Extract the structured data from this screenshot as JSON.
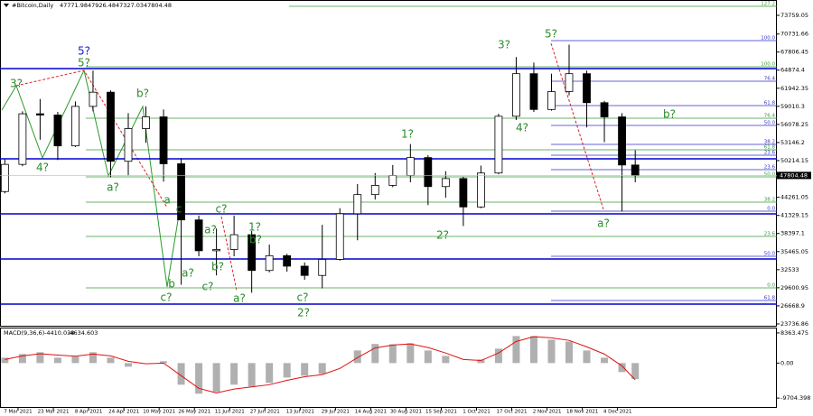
{
  "chart_data": [
    {
      "type": "candlestick",
      "header": {
        "symbol": "#Bitcoin,Daily",
        "open": 47771.98,
        "high": 47926.48,
        "low": 47327.03,
        "close": 47804.48
      },
      "x": [
        "1 Mar 2021",
        "9 Mar 2021",
        "17 Mar 2021",
        "25 Mar 2021",
        "2 Apr 2021",
        "10 Apr 2021",
        "18 Apr 2021",
        "26 Apr 2021",
        "4 May 2021",
        "12 May 2021",
        "20 May 2021",
        "28 May 2021",
        "5 Jun 2021",
        "13 Jun 2021",
        "21 Jun 2021",
        "29 Jun 2021",
        "7 Jul 2021",
        "15 Jul 2021",
        "23 Jul 2021",
        "31 Jul 2021",
        "8 Aug 2021",
        "16 Aug 2021",
        "24 Aug 2021",
        "1 Sep 2021",
        "9 Sep 2021",
        "17 Sep 2021",
        "25 Sep 2021",
        "3 Oct 2021",
        "11 Oct 2021",
        "19 Oct 2021",
        "27 Oct 2021",
        "4 Nov 2021",
        "12 Nov 2021",
        "20 Nov 2021",
        "28 Nov 2021",
        "6 Dec 2021",
        "12 Dec 2021"
      ],
      "open": [
        45200,
        49600,
        57800,
        57600,
        52600,
        59000,
        61300,
        50100,
        55400,
        57300,
        49700,
        40600,
        35600,
        35800,
        38200,
        32400,
        34800,
        33100,
        31600,
        34200,
        41600,
        44700,
        46200,
        47800,
        50700,
        46000,
        47300,
        42700,
        48200,
        57400,
        64300,
        58500,
        61400,
        64300,
        59600,
        57300,
        49500
      ],
      "high": [
        50400,
        58200,
        60200,
        58100,
        59800,
        64800,
        61600,
        57900,
        59000,
        58500,
        50600,
        41300,
        39200,
        41300,
        38800,
        36600,
        35100,
        33700,
        39800,
        42500,
        46400,
        48200,
        49500,
        52900,
        51100,
        48500,
        47600,
        49400,
        57800,
        67000,
        66100,
        64300,
        69000,
        64800,
        59900,
        57900,
        51900
      ],
      "low": [
        44900,
        49300,
        53600,
        50300,
        52400,
        58200,
        47500,
        47800,
        53100,
        46800,
        30100,
        34700,
        31600,
        34700,
        28800,
        32100,
        32200,
        30900,
        29500,
        34000,
        37300,
        43900,
        45900,
        46700,
        43000,
        44200,
        39600,
        42500,
        48000,
        56800,
        58100,
        58300,
        60800,
        55600,
        53200,
        42000,
        46700
      ],
      "close": [
        49600,
        57800,
        57600,
        52600,
        59000,
        61300,
        50100,
        55400,
        57300,
        49700,
        40600,
        35600,
        35800,
        38200,
        32400,
        34800,
        33100,
        31600,
        34200,
        41600,
        44700,
        46200,
        47800,
        50700,
        46000,
        47300,
        42700,
        48200,
        57400,
        64300,
        58500,
        61400,
        64300,
        59600,
        57300,
        49500,
        47804.48
      ],
      "ylim": [
        23440,
        76245
      ],
      "yticks": [
        73759.05,
        70731.66,
        67806.45,
        64874.4,
        61942.35,
        59010.3,
        56078.25,
        53146.2,
        50214.15,
        44261.05,
        41329.15,
        38397.1,
        35465.05,
        32533,
        29600.95,
        26668.9,
        23736.86
      ],
      "date_labels": [
        "7 Mar 2021",
        "23 Mar 2021",
        "8 Apr 2021",
        "24 Apr 2021",
        "10 May 2021",
        "26 May 2021",
        "11 Jun 2021",
        "27 Jun 2021",
        "13 Jul 2021",
        "29 Jul 2021",
        "14 Aug 2021",
        "30 Aug 2021",
        "15 Sep 2021",
        "1 Oct 2021",
        "17 Oct 2021",
        "2 Nov 2021",
        "18 Nov 2021",
        "4 Dec 2021"
      ],
      "hlines": [
        {
          "price": 65130,
          "color": "#0000cc"
        },
        {
          "price": 50504,
          "color": "#0000cc"
        },
        {
          "price": 41581,
          "color": "#0000cc"
        },
        {
          "price": 34268,
          "color": "#0000cc"
        },
        {
          "price": 26955,
          "color": "#0000cc"
        }
      ],
      "levels": [
        {
          "price": 75222,
          "label": "127.2",
          "color": "#3a9a3a"
        },
        {
          "price": 69664,
          "label": "100.0",
          "color": "#3333cc"
        },
        {
          "price": 65423,
          "label": "100.0",
          "color": "#3a9a3a"
        },
        {
          "price": 63082,
          "label": "76.4",
          "color": "#3333cc"
        },
        {
          "price": 59133,
          "label": "61.8",
          "color": "#3333cc"
        },
        {
          "price": 57085,
          "label": "76.4",
          "color": "#3a9a3a"
        },
        {
          "price": 55915,
          "label": "50.0",
          "color": "#3333cc"
        },
        {
          "price": 52844,
          "label": "38.2",
          "color": "#3333cc"
        },
        {
          "price": 51966,
          "label": "61.8",
          "color": "#3a9a3a"
        },
        {
          "price": 51088,
          "label": "23.6",
          "color": "#3333cc"
        },
        {
          "price": 48748,
          "label": "23.6",
          "color": "#3333cc"
        },
        {
          "price": 47578,
          "label": "50.0",
          "color": "#3a9a3a"
        },
        {
          "price": 43483,
          "label": "38.2",
          "color": "#3a9a3a"
        },
        {
          "price": 42020,
          "label": "0.0",
          "color": "#3333cc"
        },
        {
          "price": 37925,
          "label": "23.6",
          "color": "#3a9a3a"
        },
        {
          "price": 34707,
          "label": "50.0",
          "color": "#3333cc"
        },
        {
          "price": 29588,
          "label": "0.0",
          "color": "#3a9a3a"
        },
        {
          "price": 27540,
          "label": "61.8",
          "color": "#3333cc"
        }
      ],
      "annotations": [
        {
          "text": "3?",
          "color": "#2a8a2a"
        },
        {
          "text": "4?",
          "color": "#2a8a2a"
        },
        {
          "text": "5?",
          "color": "#1a1acc"
        },
        {
          "text": "5?",
          "color": "#2a8a2a"
        },
        {
          "text": "b?",
          "color": "#2a8a2a"
        },
        {
          "text": "a?",
          "color": "#2a8a2a"
        },
        {
          "text": "a",
          "color": "#2a8a2a"
        },
        {
          "text": "c",
          "color": "#2a8a2a"
        },
        {
          "text": "b",
          "color": "#2a8a2a"
        },
        {
          "text": "c?",
          "color": "#2a8a2a"
        },
        {
          "text": "a?",
          "color": "#2a8a2a"
        },
        {
          "text": "c?",
          "color": "#2a8a2a"
        },
        {
          "text": "a?",
          "color": "#2a8a2a"
        },
        {
          "text": "1?",
          "color": "#2a8a2a"
        },
        {
          "text": "b?",
          "color": "#2a8a2a"
        },
        {
          "text": "b?",
          "color": "#2a8a2a"
        },
        {
          "text": "c?",
          "color": "#2a8a2a"
        },
        {
          "text": "a?",
          "color": "#2a8a2a"
        },
        {
          "text": "c?",
          "color": "#2a8a2a"
        },
        {
          "text": "2?",
          "color": "#2a8a2a"
        },
        {
          "text": "1?",
          "color": "#2a8a2a"
        },
        {
          "text": "2?",
          "color": "#2a8a2a"
        },
        {
          "text": "3?",
          "color": "#2a8a2a"
        },
        {
          "text": "4?",
          "color": "#2a8a2a"
        },
        {
          "text": "5?",
          "color": "#2a8a2a"
        },
        {
          "text": "a?",
          "color": "#2a8a2a"
        },
        {
          "text": "b?",
          "color": "#2a8a2a"
        }
      ]
    },
    {
      "type": "macd",
      "title": "MACD(9,36,6)",
      "last_macd": -4410.038,
      "last_signal": -4634.603,
      "x": [
        "1 Mar 2021",
        "9 Mar 2021",
        "17 Mar 2021",
        "25 Mar 2021",
        "2 Apr 2021",
        "10 Apr 2021",
        "18 Apr 2021",
        "26 Apr 2021",
        "4 May 2021",
        "12 May 2021",
        "20 May 2021",
        "28 May 2021",
        "5 Jun 2021",
        "13 Jun 2021",
        "21 Jun 2021",
        "29 Jun 2021",
        "7 Jul 2021",
        "15 Jul 2021",
        "23 Jul 2021",
        "31 Jul 2021",
        "8 Aug 2021",
        "16 Aug 2021",
        "24 Aug 2021",
        "1 Sep 2021",
        "9 Sep 2021",
        "17 Sep 2021",
        "25 Sep 2021",
        "3 Oct 2021",
        "11 Oct 2021",
        "19 Oct 2021",
        "27 Oct 2021",
        "4 Nov 2021",
        "12 Nov 2021",
        "20 Nov 2021",
        "28 Nov 2021",
        "6 Dec 2021",
        "12 Dec 2021"
      ],
      "series": [
        {
          "name": "MACD",
          "color": "#b0b0b0",
          "values": [
            1500,
            2500,
            3000,
            1500,
            1800,
            3000,
            1500,
            -1000,
            0,
            500,
            -6000,
            -8500,
            -8000,
            -6000,
            -6500,
            -5500,
            -4000,
            -3500,
            -3000,
            0,
            3500,
            5300,
            5200,
            5500,
            3500,
            2000,
            0,
            1000,
            4000,
            7500,
            7500,
            6500,
            6000,
            3500,
            1500,
            -2500,
            -4410.038
          ]
        },
        {
          "name": "Signal",
          "color": "#e01010",
          "values": [
            1000,
            2000,
            2600,
            2200,
            1900,
            2500,
            2000,
            500,
            -200,
            0,
            -3500,
            -7000,
            -8300,
            -7200,
            -6600,
            -6000,
            -4800,
            -3800,
            -3200,
            -1500,
            1500,
            4200,
            5000,
            5300,
            4300,
            2800,
            1000,
            700,
            2800,
            6000,
            7300,
            7000,
            6300,
            4500,
            2500,
            -800,
            -4634.603
          ]
        }
      ],
      "y2lim": [
        -12430,
        9600
      ],
      "y2ticks": [
        8363.475,
        {
          "value": 0,
          "label": "0.00"
        },
        -9704.398
      ]
    }
  ]
}
